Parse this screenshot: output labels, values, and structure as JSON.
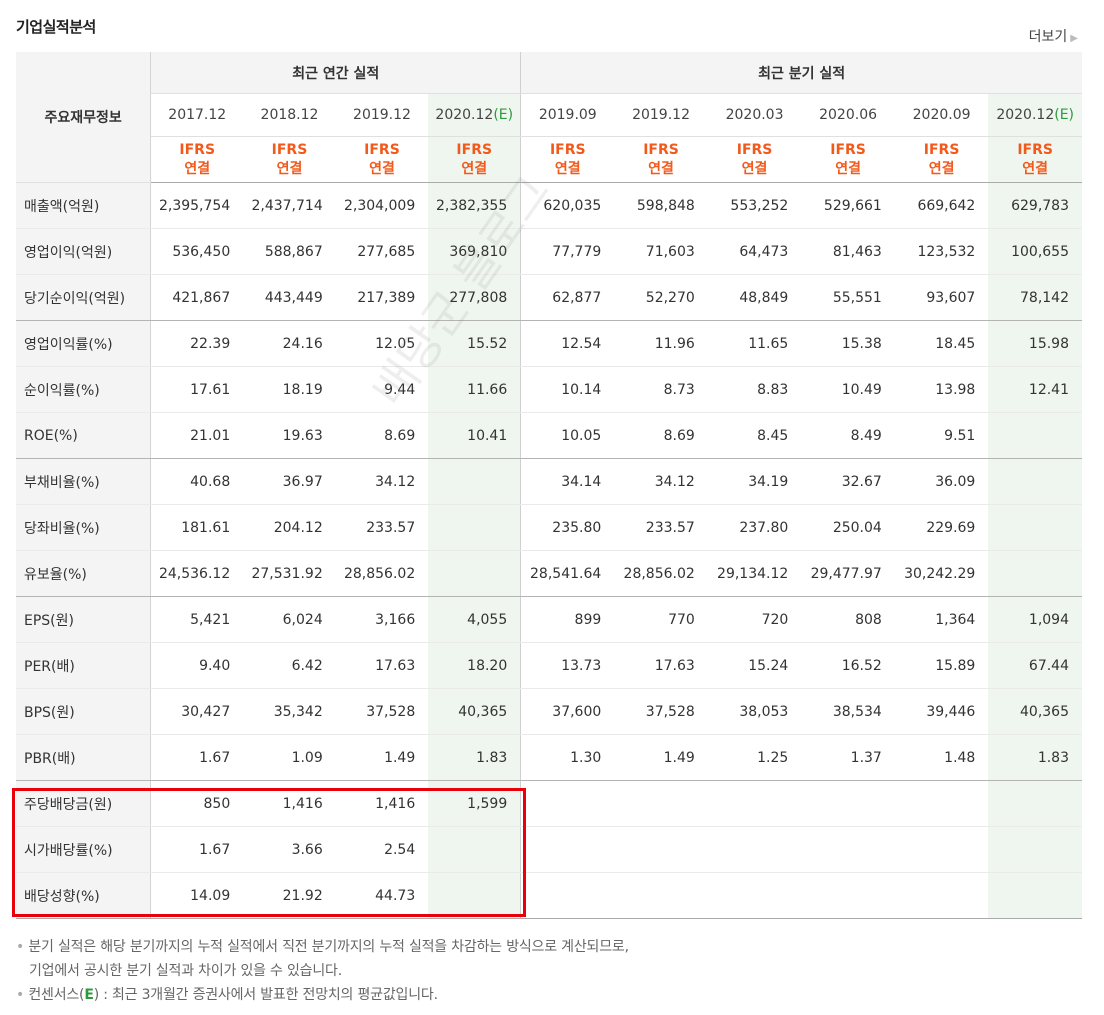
{
  "title": "기업실적분석",
  "more_label": "더보기",
  "table": {
    "row_header": "주요재무정보",
    "group_annual": "최근 연간 실적",
    "group_quarter": "최근 분기 실적",
    "columns": [
      {
        "period": "2017.12",
        "estimate": false
      },
      {
        "period": "2018.12",
        "estimate": false
      },
      {
        "period": "2019.12",
        "estimate": false
      },
      {
        "period": "2020.12",
        "estimate": true
      },
      {
        "period": "2019.09",
        "estimate": false
      },
      {
        "period": "2019.12",
        "estimate": false
      },
      {
        "period": "2020.03",
        "estimate": false
      },
      {
        "period": "2020.06",
        "estimate": false
      },
      {
        "period": "2020.09",
        "estimate": false
      },
      {
        "period": "2020.12",
        "estimate": true
      }
    ],
    "estimate_mark": "(E)",
    "standard_line1": "IFRS",
    "standard_line2": "연결",
    "rows": [
      {
        "label": "매출액(억원)",
        "values": [
          "2,395,754",
          "2,437,714",
          "2,304,009",
          "2,382,355",
          "620,035",
          "598,848",
          "553,252",
          "529,661",
          "669,642",
          "629,783"
        ]
      },
      {
        "label": "영업이익(억원)",
        "values": [
          "536,450",
          "588,867",
          "277,685",
          "369,810",
          "77,779",
          "71,603",
          "64,473",
          "81,463",
          "123,532",
          "100,655"
        ]
      },
      {
        "label": "당기순이익(억원)",
        "values": [
          "421,867",
          "443,449",
          "217,389",
          "277,808",
          "62,877",
          "52,270",
          "48,849",
          "55,551",
          "93,607",
          "78,142"
        ]
      },
      {
        "label": "영업이익률(%)",
        "values": [
          "22.39",
          "24.16",
          "12.05",
          "15.52",
          "12.54",
          "11.96",
          "11.65",
          "15.38",
          "18.45",
          "15.98"
        ]
      },
      {
        "label": "순이익률(%)",
        "values": [
          "17.61",
          "18.19",
          "9.44",
          "11.66",
          "10.14",
          "8.73",
          "8.83",
          "10.49",
          "13.98",
          "12.41"
        ]
      },
      {
        "label": "ROE(%)",
        "values": [
          "21.01",
          "19.63",
          "8.69",
          "10.41",
          "10.05",
          "8.69",
          "8.45",
          "8.49",
          "9.51",
          ""
        ]
      },
      {
        "label": "부채비율(%)",
        "values": [
          "40.68",
          "36.97",
          "34.12",
          "",
          "34.14",
          "34.12",
          "34.19",
          "32.67",
          "36.09",
          ""
        ]
      },
      {
        "label": "당좌비율(%)",
        "values": [
          "181.61",
          "204.12",
          "233.57",
          "",
          "235.80",
          "233.57",
          "237.80",
          "250.04",
          "229.69",
          ""
        ]
      },
      {
        "label": "유보율(%)",
        "values": [
          "24,536.12",
          "27,531.92",
          "28,856.02",
          "",
          "28,541.64",
          "28,856.02",
          "29,134.12",
          "29,477.97",
          "30,242.29",
          ""
        ]
      },
      {
        "label": "EPS(원)",
        "values": [
          "5,421",
          "6,024",
          "3,166",
          "4,055",
          "899",
          "770",
          "720",
          "808",
          "1,364",
          "1,094"
        ]
      },
      {
        "label": "PER(배)",
        "values": [
          "9.40",
          "6.42",
          "17.63",
          "18.20",
          "13.73",
          "17.63",
          "15.24",
          "16.52",
          "15.89",
          "67.44"
        ]
      },
      {
        "label": "BPS(원)",
        "values": [
          "30,427",
          "35,342",
          "37,528",
          "40,365",
          "37,600",
          "37,528",
          "38,053",
          "38,534",
          "39,446",
          "40,365"
        ]
      },
      {
        "label": "PBR(배)",
        "values": [
          "1.67",
          "1.09",
          "1.49",
          "1.83",
          "1.30",
          "1.49",
          "1.25",
          "1.37",
          "1.48",
          "1.83"
        ]
      },
      {
        "label": "주당배당금(원)",
        "values": [
          "850",
          "1,416",
          "1,416",
          "1,599",
          "",
          "",
          "",
          "",
          "",
          ""
        ]
      },
      {
        "label": "시가배당률(%)",
        "values": [
          "1.67",
          "3.66",
          "2.54",
          "",
          "",
          "",
          "",
          "",
          "",
          ""
        ]
      },
      {
        "label": "배당성향(%)",
        "values": [
          "14.09",
          "21.92",
          "44.73",
          "",
          "",
          "",
          "",
          "",
          "",
          ""
        ]
      }
    ]
  },
  "notes": {
    "note1_line1": "분기 실적은 해당 분기까지의 누적 실적에서 직전 분기까지의 누적 실적을 차감하는 방식으로 계산되므로,",
    "note1_line2": "기업에서 공시한 분기 실적과 차이가 있을 수 있습니다.",
    "note2_prefix": "컨센서스(",
    "note2_mark": "E",
    "note2_suffix": ") : 최근 3개월간 증권사에서 발표한 전망치의 평균값입니다."
  },
  "watermark": "배당군 블로그",
  "colors": {
    "ifrs_orange": "#f25a1c",
    "estimate_green": "#2c9a3c",
    "estimate_bg": "#eff6ef",
    "highlight_red": "#e8000b"
  }
}
